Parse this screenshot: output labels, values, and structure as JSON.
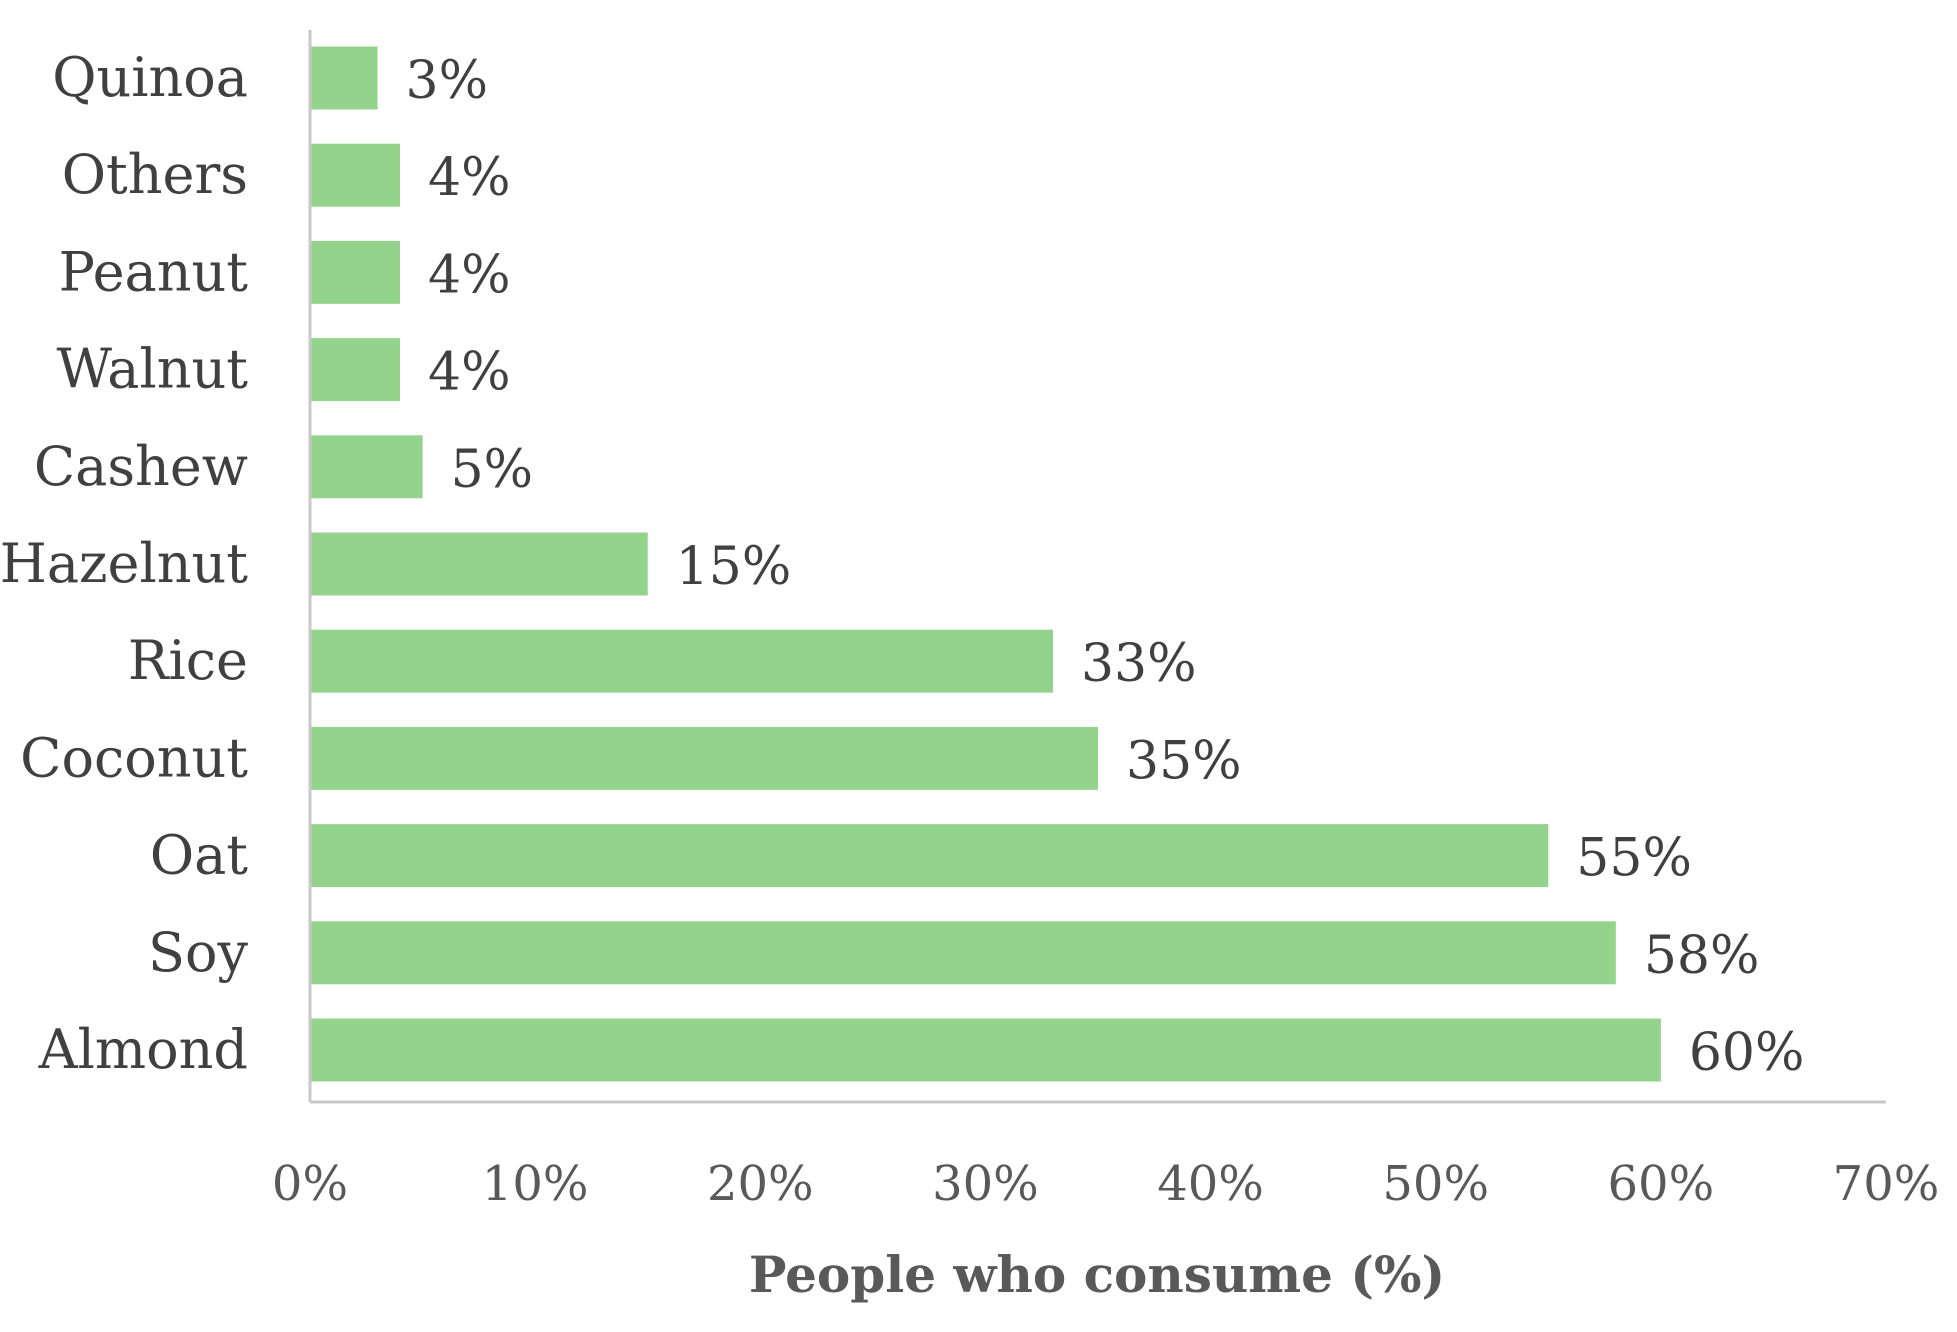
{
  "chart_data": {
    "type": "bar",
    "orientation": "horizontal",
    "categories": [
      "Quinoa",
      "Others",
      "Peanut",
      "Walnut",
      "Cashew",
      "Hazelnut",
      "Rice",
      "Coconut",
      "Oat",
      "Soy",
      "Almond"
    ],
    "values": [
      3,
      4,
      4,
      4,
      5,
      15,
      33,
      35,
      55,
      58,
      60
    ],
    "data_labels": [
      "3%",
      "4%",
      "4%",
      "4%",
      "5%",
      "15%",
      "33%",
      "35%",
      "55%",
      "58%",
      "60%"
    ],
    "title": "",
    "xlabel": "People who consume (%)",
    "ylabel": "",
    "xlim": [
      0,
      70
    ],
    "x_ticks": [
      0,
      10,
      20,
      30,
      40,
      50,
      60,
      70
    ],
    "x_tick_labels": [
      "0%",
      "10%",
      "20%",
      "30%",
      "40%",
      "50%",
      "60%",
      "70%"
    ],
    "grid": false,
    "legend": "none",
    "bar_color": "#93d38b",
    "axis_color": "#c8c8c8",
    "text_color": "#404040"
  }
}
